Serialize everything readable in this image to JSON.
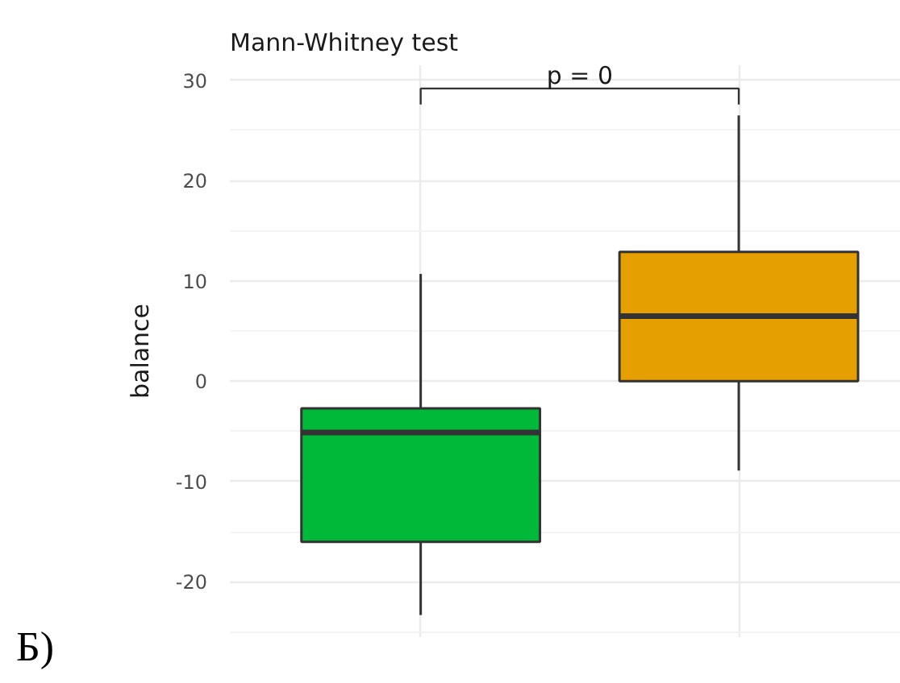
{
  "chart_data": {
    "type": "box",
    "title": "Mann-Whitney test",
    "ylabel": "balance",
    "categories": [
      null,
      null
    ],
    "boxes": [
      {
        "low": -23.3,
        "q1": -16.0,
        "median": -5.1,
        "q3": -2.7,
        "high": 10.7
      },
      {
        "low": -8.9,
        "q1": 0.0,
        "median": 6.5,
        "q3": 12.9,
        "high": 26.5
      }
    ],
    "colors": [
      "#00b938",
      "#e69f00"
    ],
    "ylim": [
      -25.5,
      31.5
    ],
    "yticks": [
      -20,
      -10,
      0,
      10,
      20,
      30
    ],
    "grid": true,
    "tick_labels": "y",
    "annotations": [
      "p = 0",
      "Б)"
    ]
  }
}
